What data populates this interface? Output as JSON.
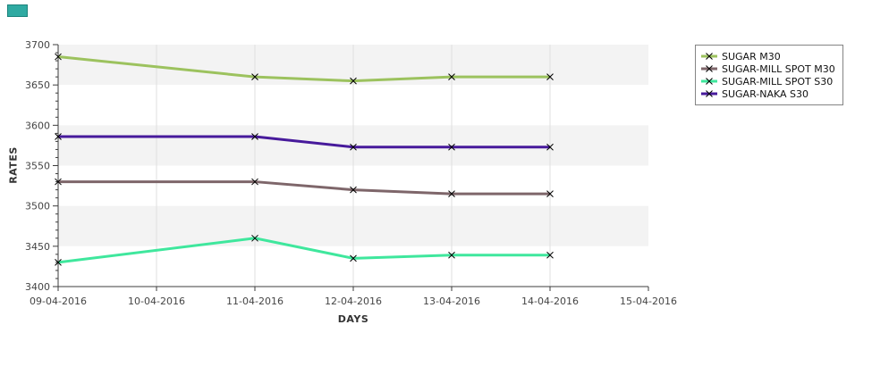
{
  "page": {
    "background": "#ffffff",
    "accent_swatch_color": "#2faaa2",
    "accent_swatch_border": "#1d837c"
  },
  "chart_data": {
    "type": "line",
    "title": "",
    "xlabel": "DAYS",
    "ylabel": "RATES",
    "x_categories": [
      "09-04-2016",
      "10-04-2016",
      "11-04-2016",
      "12-04-2016",
      "13-04-2016",
      "14-04-2016",
      "15-04-2016"
    ],
    "y_ticks": [
      3400,
      3450,
      3500,
      3550,
      3600,
      3650,
      3700
    ],
    "ylim": [
      3400,
      3700
    ],
    "y_minor_step": 10,
    "grid": "vertical-light-gray",
    "band_colors": [
      "#f3f3f3",
      "#ffffff"
    ],
    "gridline_color": "#dfdfdf",
    "axis_color": "#3c3c3c",
    "marker": "x",
    "marker_color": "#000000",
    "legend_position": "top-right",
    "series": [
      {
        "name": "SUGAR M30",
        "color": "#9cc25e",
        "x": [
          "09-04-2016",
          "11-04-2016",
          "12-04-2016",
          "13-04-2016",
          "14-04-2016"
        ],
        "values": [
          3685,
          3660,
          3655,
          3660,
          3660
        ]
      },
      {
        "name": "SUGAR-MILL SPOT M30",
        "color": "#7e666a",
        "x": [
          "09-04-2016",
          "11-04-2016",
          "12-04-2016",
          "13-04-2016",
          "14-04-2016"
        ],
        "values": [
          3530,
          3530,
          3520,
          3515,
          3515
        ]
      },
      {
        "name": "SUGAR-MILL SPOT S30",
        "color": "#3fe79d",
        "x": [
          "09-04-2016",
          "11-04-2016",
          "12-04-2016",
          "13-04-2016",
          "14-04-2016"
        ],
        "values": [
          3430,
          3460,
          3435,
          3439,
          3439
        ]
      },
      {
        "name": "SUGAR-NAKA S30",
        "color": "#471a9b",
        "x": [
          "09-04-2016",
          "11-04-2016",
          "12-04-2016",
          "13-04-2016",
          "14-04-2016"
        ],
        "values": [
          3586,
          3586,
          3573,
          3573,
          3573
        ]
      }
    ]
  }
}
